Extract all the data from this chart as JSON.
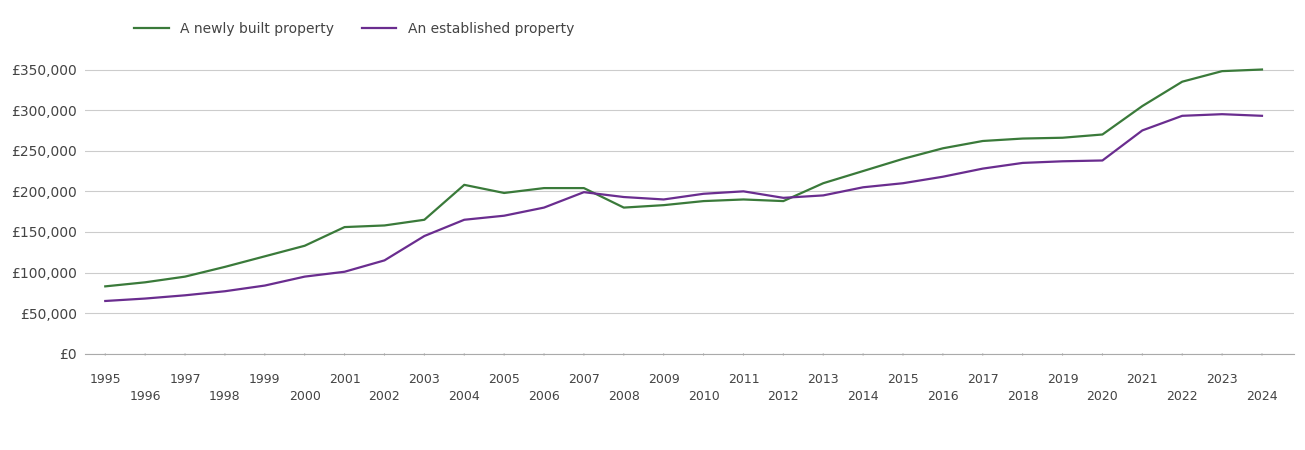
{
  "newly_built": {
    "years": [
      1995,
      1996,
      1997,
      1998,
      1999,
      2000,
      2001,
      2002,
      2003,
      2004,
      2005,
      2006,
      2007,
      2008,
      2009,
      2010,
      2011,
      2012,
      2013,
      2014,
      2015,
      2016,
      2017,
      2018,
      2019,
      2020,
      2021,
      2022,
      2023,
      2024
    ],
    "values": [
      83000,
      88000,
      95000,
      107000,
      120000,
      133000,
      156000,
      158000,
      165000,
      208000,
      198000,
      204000,
      204000,
      180000,
      183000,
      188000,
      190000,
      188000,
      210000,
      225000,
      240000,
      253000,
      262000,
      265000,
      266000,
      270000,
      305000,
      335000,
      348000,
      350000
    ]
  },
  "established": {
    "years": [
      1995,
      1996,
      1997,
      1998,
      1999,
      2000,
      2001,
      2002,
      2003,
      2004,
      2005,
      2006,
      2007,
      2008,
      2009,
      2010,
      2011,
      2012,
      2013,
      2014,
      2015,
      2016,
      2017,
      2018,
      2019,
      2020,
      2021,
      2022,
      2023,
      2024
    ],
    "values": [
      65000,
      68000,
      72000,
      77000,
      84000,
      95000,
      101000,
      115000,
      145000,
      165000,
      170000,
      180000,
      199000,
      193000,
      190000,
      197000,
      200000,
      192000,
      195000,
      205000,
      210000,
      218000,
      228000,
      235000,
      237000,
      238000,
      275000,
      293000,
      295000,
      293000
    ]
  },
  "newly_built_color": "#3a7a3a",
  "established_color": "#6a2d8f",
  "newly_built_label": "A newly built property",
  "established_label": "An established property",
  "ylim": [
    0,
    375000
  ],
  "yticks": [
    0,
    50000,
    100000,
    150000,
    200000,
    250000,
    300000,
    350000
  ],
  "ytick_labels": [
    "£0",
    "£50,000",
    "£100,000",
    "£150,000",
    "£200,000",
    "£250,000",
    "£300,000",
    "£350,000"
  ],
  "background_color": "#ffffff",
  "grid_color": "#cccccc",
  "line_width": 1.6,
  "odd_years": [
    1995,
    1997,
    1999,
    2001,
    2003,
    2005,
    2007,
    2009,
    2011,
    2013,
    2015,
    2017,
    2019,
    2021,
    2023
  ],
  "even_years": [
    1996,
    1998,
    2000,
    2002,
    2004,
    2006,
    2008,
    2010,
    2012,
    2014,
    2016,
    2018,
    2020,
    2022,
    2024
  ]
}
